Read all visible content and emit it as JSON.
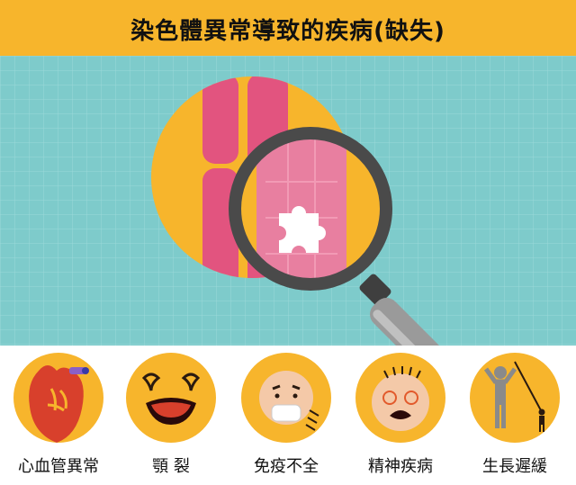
{
  "title": "染色體異常導致的疾病(缺失)",
  "colors": {
    "orange": "#f7b52c",
    "teal": "#7ecbcb",
    "pink": "#e2547f",
    "light_pink": "#e87fa0",
    "magnifier_dark": "#4a4a4a"
  },
  "conditions": [
    {
      "label": "心血管異常",
      "icon": "heart-icon"
    },
    {
      "label": "顎 裂",
      "icon": "cleft-palate-icon"
    },
    {
      "label": "免疫不全",
      "icon": "sick-face-mask-icon"
    },
    {
      "label": "精神疾病",
      "icon": "dizzy-face-icon"
    },
    {
      "label": "生長遲緩",
      "icon": "growth-height-icon"
    }
  ]
}
